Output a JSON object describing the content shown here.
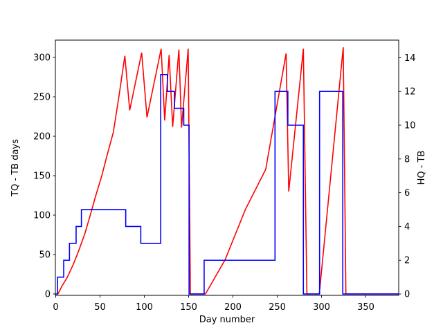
{
  "figure": {
    "background": "#ffffff",
    "spine_color": "#000000"
  },
  "chart_data": {
    "type": "line",
    "title": "",
    "xlabel": "Day number",
    "ylabel_left": "TQ - TB days",
    "ylabel_right": "HQ - TB",
    "xlim": [
      -0.4,
      387.1
    ],
    "ylim_left": [
      -1.75,
      321.95
    ],
    "ylim_right": [
      -0.08,
      15.04
    ],
    "xticks": [
      0,
      50,
      100,
      150,
      200,
      250,
      300,
      350
    ],
    "yticks_left": [
      0,
      50,
      100,
      150,
      200,
      250,
      300
    ],
    "yticks_right": [
      0,
      2,
      4,
      6,
      8,
      10,
      12,
      14
    ],
    "grid": false,
    "legend": "none",
    "series": [
      {
        "name": "TQ - TB days",
        "axis": "left",
        "color": "#ff0000",
        "style": "line",
        "points": [
          [
            2.5,
            0
          ],
          [
            7,
            10
          ],
          [
            13,
            21
          ],
          [
            20,
            38
          ],
          [
            26,
            55
          ],
          [
            33,
            77
          ],
          [
            39,
            100
          ],
          [
            45,
            124
          ],
          [
            52,
            150
          ],
          [
            58,
            176
          ],
          [
            65,
            205
          ],
          [
            71,
            248
          ],
          [
            78,
            302
          ],
          [
            83.5,
            233
          ],
          [
            97,
            306
          ],
          [
            103,
            224
          ],
          [
            119,
            311
          ],
          [
            123,
            220
          ],
          [
            128,
            303
          ],
          [
            132,
            212
          ],
          [
            139,
            310
          ],
          [
            142,
            211
          ],
          [
            149.5,
            311
          ],
          [
            152,
            0
          ],
          [
            169,
            0
          ],
          [
            191,
            43
          ],
          [
            214,
            107
          ],
          [
            237,
            158
          ],
          [
            260,
            305
          ],
          [
            263,
            130
          ],
          [
            279.5,
            311
          ],
          [
            283.5,
            0
          ],
          [
            297.5,
            0
          ],
          [
            324.5,
            313
          ],
          [
            327.5,
            0
          ],
          [
            387,
            0
          ]
        ]
      },
      {
        "name": "HQ - TB",
        "axis": "right",
        "color": "#0000ff",
        "style": "step-post",
        "points": [
          [
            0,
            0
          ],
          [
            2,
            1
          ],
          [
            9,
            2
          ],
          [
            15.5,
            3
          ],
          [
            23,
            4
          ],
          [
            29,
            5
          ],
          [
            79,
            4
          ],
          [
            96,
            3
          ],
          [
            118.5,
            13
          ],
          [
            126,
            12
          ],
          [
            134,
            11
          ],
          [
            144.5,
            10
          ],
          [
            150.5,
            0
          ],
          [
            167.5,
            2
          ],
          [
            247.5,
            12
          ],
          [
            262,
            10
          ],
          [
            279.5,
            0
          ],
          [
            297.8,
            12
          ],
          [
            324,
            0
          ],
          [
            387,
            0
          ]
        ]
      }
    ]
  }
}
